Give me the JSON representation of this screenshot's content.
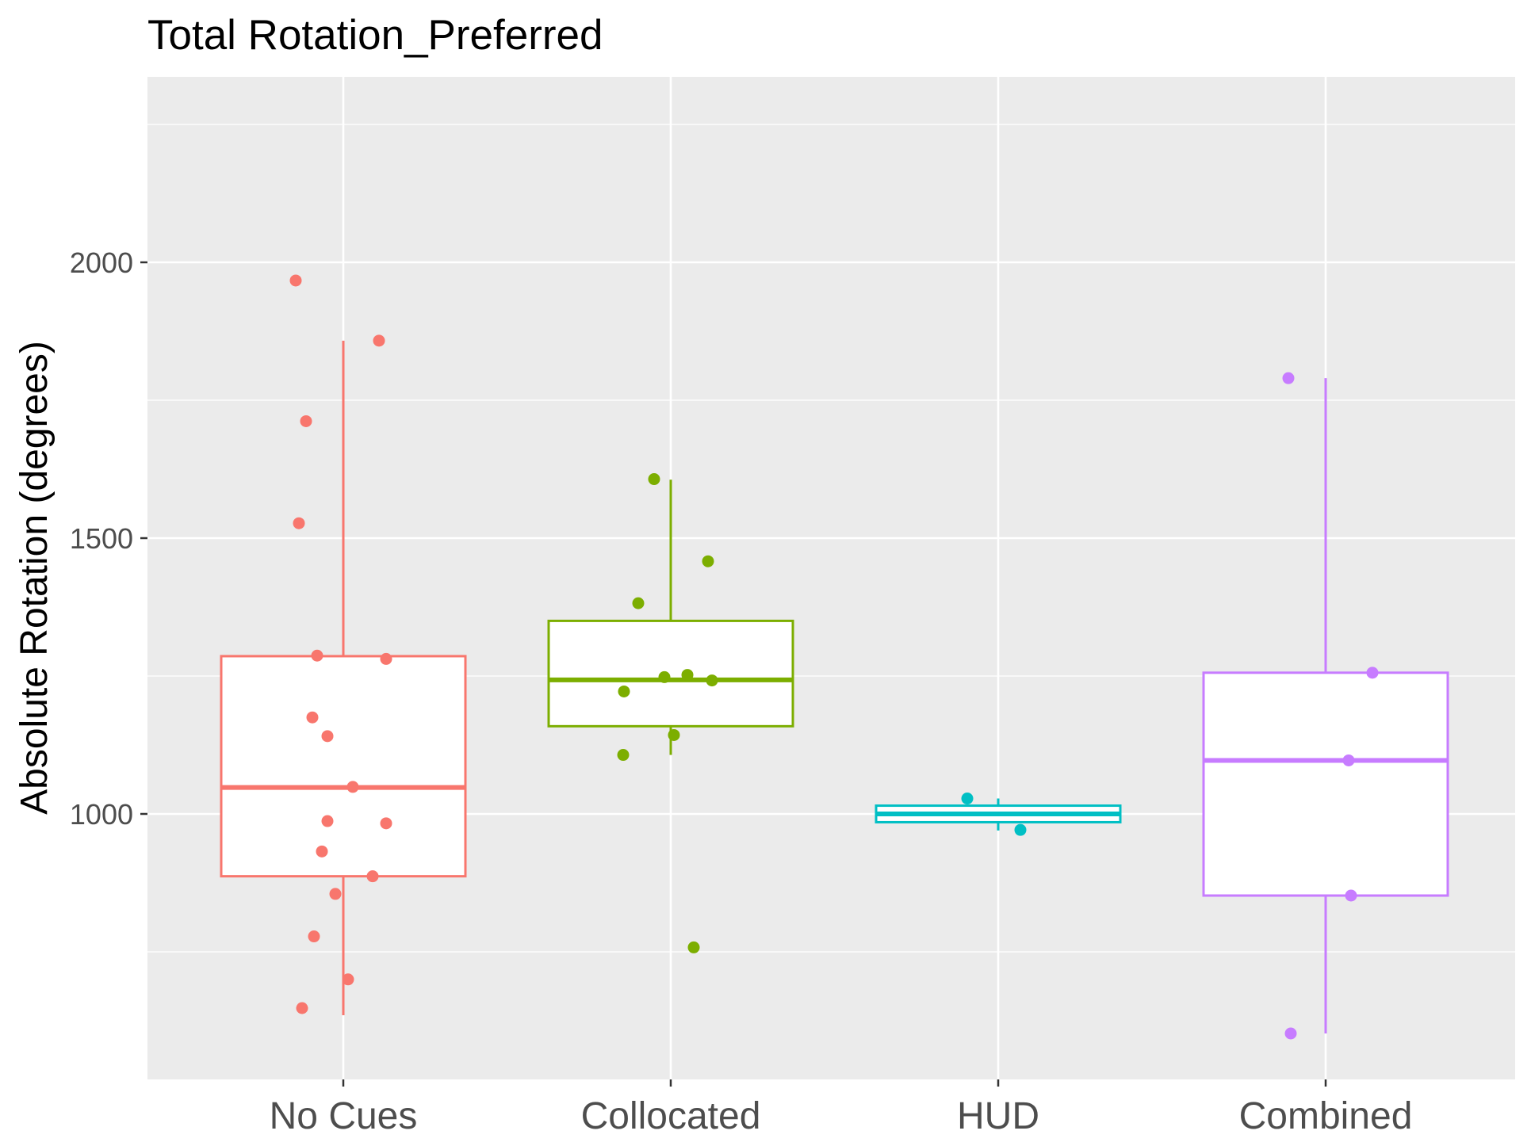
{
  "chart_data": {
    "type": "box",
    "title": "Total Rotation_Preferred",
    "xlabel": "",
    "ylabel": "Absolute Rotation (degrees)",
    "ylim": [
      520,
      2330
    ],
    "yticks": [
      2000,
      1500,
      1000
    ],
    "grid": true,
    "legend": "none",
    "categories": [
      "No Cues",
      "Collocated",
      "HUD",
      "Combined"
    ],
    "colors": [
      "#F8766D",
      "#7CAE00",
      "#00BFC4",
      "#C77CFF"
    ],
    "boxes": [
      {
        "category": "No Cues",
        "whisker_low": 635,
        "q1": 887,
        "median": 1048,
        "q3": 1286,
        "whisker_high": 1858,
        "points": [
          1967,
          1858,
          1712,
          1527,
          1287,
          1281,
          1175,
          1141,
          1049,
          987,
          983,
          932,
          887,
          855,
          778,
          700,
          648
        ]
      },
      {
        "category": "Collocated",
        "whisker_low": 1107,
        "q1": 1159,
        "median": 1243,
        "q3": 1350,
        "whisker_high": 1606,
        "points": [
          1607,
          1458,
          1382,
          1252,
          1248,
          1242,
          1222,
          1143,
          1107,
          758
        ]
      },
      {
        "category": "HUD",
        "whisker_low": 970,
        "q1": 985,
        "median": 1000,
        "q3": 1015,
        "whisker_high": 1028,
        "points": [
          1028,
          971
        ]
      },
      {
        "category": "Combined",
        "whisker_low": 602,
        "q1": 852,
        "median": 1097,
        "q3": 1256,
        "whisker_high": 1790,
        "points": [
          1790,
          1256,
          1097,
          852,
          602
        ]
      }
    ]
  }
}
